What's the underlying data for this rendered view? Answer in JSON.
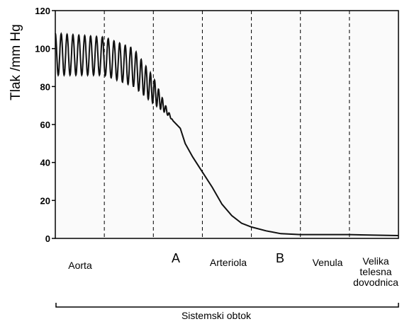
{
  "chart_data": {
    "type": "line",
    "ylabel": "Tlak /mm Hg",
    "xlabel": "Sistemski obtok",
    "ylim": [
      0,
      120
    ],
    "yticks": [
      0,
      20,
      40,
      60,
      80,
      100,
      120
    ],
    "grid": false,
    "segments": [
      {
        "label": "Aorta",
        "size": "small"
      },
      {
        "label": "A",
        "size": "big"
      },
      {
        "label": "Arteriola",
        "size": "small"
      },
      {
        "label": "B",
        "size": "big"
      },
      {
        "label": "Venula",
        "size": "small"
      },
      {
        "label": "Velika telesna dovodnica",
        "size": "small"
      }
    ],
    "x_domain": [
      0,
      7
    ],
    "divider_positions": [
      1,
      2,
      3,
      4,
      5,
      6
    ],
    "series": [
      {
        "oscillation": [
          {
            "x": 0.0,
            "mean": 97,
            "amp": 11,
            "period": 0.12
          },
          {
            "x": 1.0,
            "mean": 96,
            "amp": 10,
            "period": 0.12
          },
          {
            "x": 1.6,
            "mean": 90,
            "amp": 10,
            "period": 0.11
          },
          {
            "x": 2.0,
            "mean": 78,
            "amp": 7,
            "period": 0.085
          },
          {
            "x": 2.25,
            "mean": 68,
            "amp": 2,
            "period": 0.07
          },
          {
            "x": 2.4,
            "mean": 62,
            "amp": 0,
            "period": 0.07
          }
        ],
        "points": [
          [
            2.4,
            62
          ],
          [
            2.55,
            58
          ],
          [
            2.65,
            50
          ],
          [
            2.8,
            43
          ],
          [
            3.0,
            35
          ],
          [
            3.2,
            27
          ],
          [
            3.4,
            18
          ],
          [
            3.6,
            12
          ],
          [
            3.8,
            8
          ],
          [
            4.0,
            6
          ],
          [
            4.3,
            4
          ],
          [
            4.6,
            2.5
          ],
          [
            5.0,
            2
          ],
          [
            5.5,
            2
          ],
          [
            6.0,
            2
          ],
          [
            6.5,
            1.7
          ],
          [
            7.0,
            1.5
          ]
        ]
      }
    ]
  }
}
